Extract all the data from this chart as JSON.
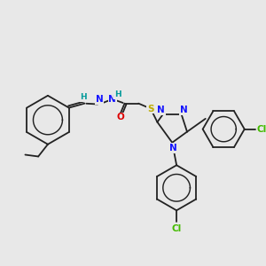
{
  "bg": "#e8e8e8",
  "bc": "#222222",
  "nc": "#1414ff",
  "oc": "#dd0000",
  "sc": "#bbaa00",
  "clc": "#44bb00",
  "hc": "#009999",
  "lw": 1.3,
  "fs": 7.5,
  "fs_s": 6.5,
  "xlim": [
    0,
    300
  ],
  "ylim": [
    0,
    300
  ]
}
